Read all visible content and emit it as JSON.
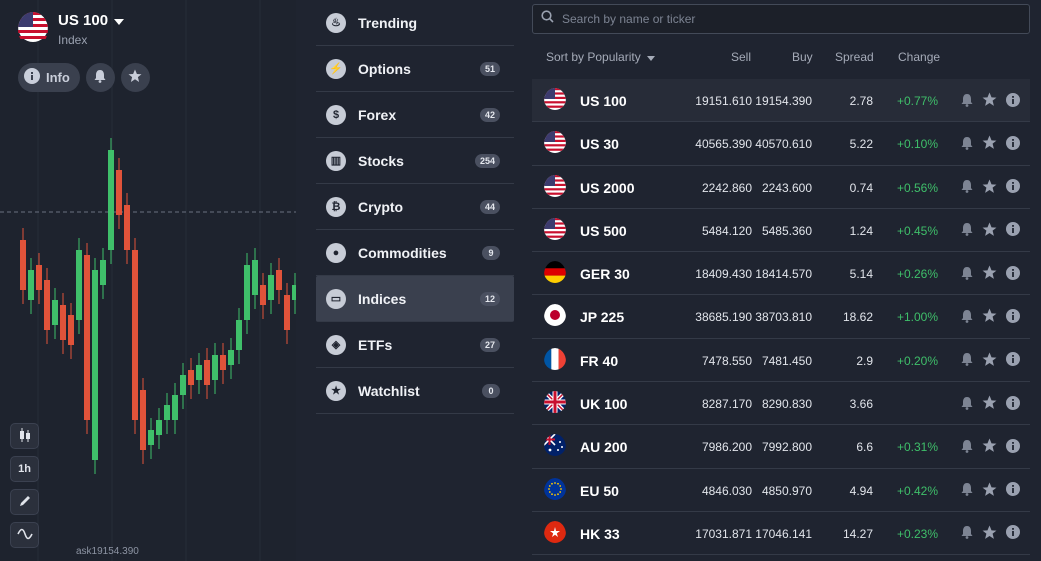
{
  "asset": {
    "title": "US 100",
    "subtitle": "Index",
    "ask_label": "ask19154.390"
  },
  "info_tab": {
    "label": "Info"
  },
  "toolbar": {
    "timeframe": "1h"
  },
  "menu": [
    {
      "label": "Trending",
      "count": "",
      "icon": "fire-icon"
    },
    {
      "label": "Options",
      "count": "51",
      "icon": "lightning-icon"
    },
    {
      "label": "Forex",
      "count": "42",
      "icon": "dollar-icon"
    },
    {
      "label": "Stocks",
      "count": "254",
      "icon": "bank-icon"
    },
    {
      "label": "Crypto",
      "count": "44",
      "icon": "bitcoin-icon"
    },
    {
      "label": "Commodities",
      "count": "9",
      "icon": "drop-icon"
    },
    {
      "label": "Indices",
      "count": "12",
      "icon": "indices-icon",
      "active": true
    },
    {
      "label": "ETFs",
      "count": "27",
      "icon": "cube-icon"
    },
    {
      "label": "Watchlist",
      "count": "0",
      "icon": "star-icon"
    }
  ],
  "search": {
    "placeholder": "Search by name or ticker"
  },
  "table": {
    "sort_label": "Sort by Popularity",
    "headers": {
      "sell": "Sell",
      "buy": "Buy",
      "spread": "Spread",
      "change": "Change"
    },
    "rows": [
      {
        "name": "US 100",
        "flag": "us",
        "sell": "19151.610",
        "buy": "19154.390",
        "spread": "2.78",
        "change": "+0.77%"
      },
      {
        "name": "US 30",
        "flag": "us",
        "sell": "40565.390",
        "buy": "40570.610",
        "spread": "5.22",
        "change": "+0.10%"
      },
      {
        "name": "US 2000",
        "flag": "us",
        "sell": "2242.860",
        "buy": "2243.600",
        "spread": "0.74",
        "change": "+0.56%"
      },
      {
        "name": "US 500",
        "flag": "us",
        "sell": "5484.120",
        "buy": "5485.360",
        "spread": "1.24",
        "change": "+0.45%"
      },
      {
        "name": "GER 30",
        "flag": "de",
        "sell": "18409.430",
        "buy": "18414.570",
        "spread": "5.14",
        "change": "+0.26%"
      },
      {
        "name": "JP 225",
        "flag": "jp",
        "sell": "38685.190",
        "buy": "38703.810",
        "spread": "18.62",
        "change": "+1.00%"
      },
      {
        "name": "FR 40",
        "flag": "fr",
        "sell": "7478.550",
        "buy": "7481.450",
        "spread": "2.9",
        "change": "+0.20%"
      },
      {
        "name": "UK 100",
        "flag": "uk",
        "sell": "8287.170",
        "buy": "8290.830",
        "spread": "3.66",
        "change": ""
      },
      {
        "name": "AU 200",
        "flag": "au",
        "sell": "7986.200",
        "buy": "7992.800",
        "spread": "6.6",
        "change": "+0.31%"
      },
      {
        "name": "EU 50",
        "flag": "eu",
        "sell": "4846.030",
        "buy": "4850.970",
        "spread": "4.94",
        "change": "+0.42%"
      },
      {
        "name": "HK 33",
        "flag": "hk",
        "sell": "17031.871",
        "buy": "17046.141",
        "spread": "14.27",
        "change": "+0.23%"
      }
    ]
  },
  "colors": {
    "up": "#3fbf6a",
    "down": "#e0533a",
    "bg": "#1f2430",
    "panel": "#1e232e"
  }
}
